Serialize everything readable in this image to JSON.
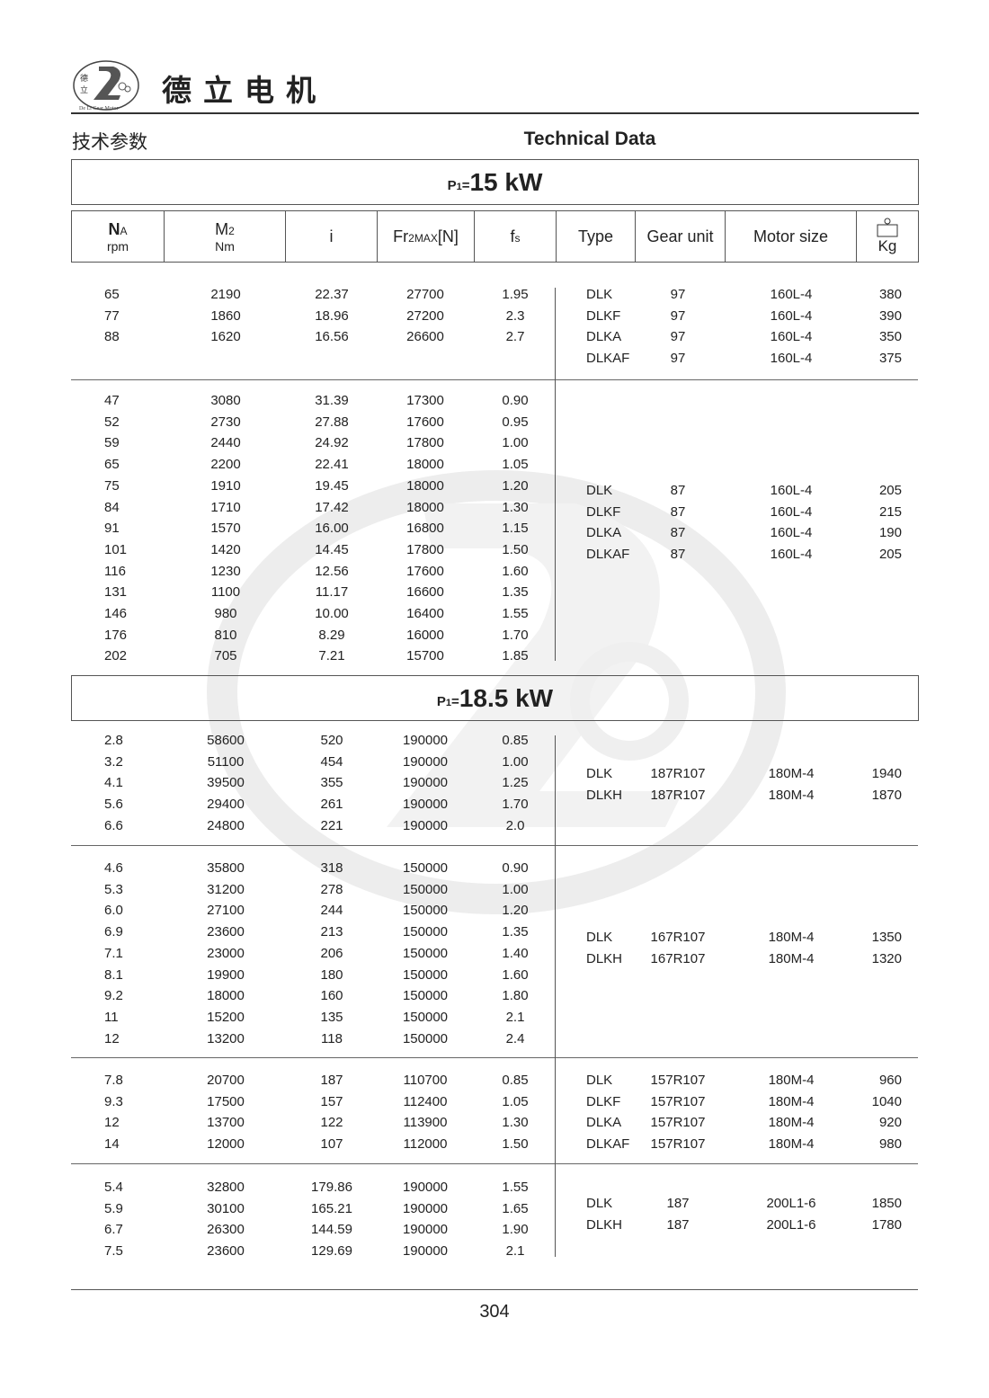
{
  "header": {
    "brand_cn": "德立电机",
    "logo_text": "De Li Gear Motor",
    "logo_chars": "德立",
    "section_cn": "技术参数",
    "section_en": "Technical Data"
  },
  "watermark_text": "De Li Gear Motor",
  "columns": {
    "na": "NA",
    "na_sub": "A",
    "na_main": "N",
    "na_unit": "rpm",
    "m2_main": "M",
    "m2_sub": "2",
    "m2_unit": "Nm",
    "i": "i",
    "fr_main": "Fr",
    "fr_sub": "2MAX",
    "fr_unit": "[N]",
    "fs_main": "f",
    "fs_sub": "s",
    "type": "Type",
    "gear_unit": "Gear unit",
    "motor_size": "Motor size",
    "weight_unit": "Kg",
    "weight_icon": "weight-icon"
  },
  "sections": [
    {
      "power_label": "P",
      "power_sub": "1",
      "power_eq": "=",
      "power_value": "15 kW",
      "groups": [
        {
          "rows": [
            [
              "65",
              "2190",
              "22.37",
              "27700",
              "1.95"
            ],
            [
              "77",
              "1860",
              "18.96",
              "27200",
              "2.3"
            ],
            [
              "88",
              "1620",
              "16.56",
              "26600",
              "2.7"
            ]
          ],
          "variants": [
            [
              "DLK",
              "97",
              "160L-4",
              "380"
            ],
            [
              "DLKF",
              "97",
              "160L-4",
              "390"
            ],
            [
              "DLKA",
              "97",
              "160L-4",
              "350"
            ],
            [
              "DLKAF",
              "97",
              "160L-4",
              "375"
            ]
          ]
        },
        {
          "rows": [
            [
              "47",
              "3080",
              "31.39",
              "17300",
              "0.90"
            ],
            [
              "52",
              "2730",
              "27.88",
              "17600",
              "0.95"
            ],
            [
              "59",
              "2440",
              "24.92",
              "17800",
              "1.00"
            ],
            [
              "65",
              "2200",
              "22.41",
              "18000",
              "1.05"
            ],
            [
              "75",
              "1910",
              "19.45",
              "18000",
              "1.20"
            ],
            [
              "84",
              "1710",
              "17.42",
              "18000",
              "1.30"
            ],
            [
              "91",
              "1570",
              "16.00",
              "16800",
              "1.15"
            ],
            [
              "101",
              "1420",
              "14.45",
              "17800",
              "1.50"
            ],
            [
              "116",
              "1230",
              "12.56",
              "17600",
              "1.60"
            ],
            [
              "131",
              "1100",
              "11.17",
              "16600",
              "1.35"
            ],
            [
              "146",
              "980",
              "10.00",
              "16400",
              "1.55"
            ],
            [
              "176",
              "810",
              "8.29",
              "16000",
              "1.70"
            ],
            [
              "202",
              "705",
              "7.21",
              "15700",
              "1.85"
            ]
          ],
          "variants": [
            [
              "DLK",
              "87",
              "160L-4",
              "205"
            ],
            [
              "DLKF",
              "87",
              "160L-4",
              "215"
            ],
            [
              "DLKA",
              "87",
              "160L-4",
              "190"
            ],
            [
              "DLKAF",
              "87",
              "160L-4",
              "205"
            ]
          ]
        }
      ]
    },
    {
      "power_label": "P",
      "power_sub": "1",
      "power_eq": "=",
      "power_value": "18.5 kW",
      "groups": [
        {
          "rows": [
            [
              "2.8",
              "58600",
              "520",
              "190000",
              "0.85"
            ],
            [
              "3.2",
              "51100",
              "454",
              "190000",
              "1.00"
            ],
            [
              "4.1",
              "39500",
              "355",
              "190000",
              "1.25"
            ],
            [
              "5.6",
              "29400",
              "261",
              "190000",
              "1.70"
            ],
            [
              "6.6",
              "24800",
              "221",
              "190000",
              "2.0"
            ]
          ],
          "variants": [
            [
              "DLK",
              "187R107",
              "180M-4",
              "1940"
            ],
            [
              "DLKH",
              "187R107",
              "180M-4",
              "1870"
            ]
          ]
        },
        {
          "rows": [
            [
              "4.6",
              "35800",
              "318",
              "150000",
              "0.90"
            ],
            [
              "5.3",
              "31200",
              "278",
              "150000",
              "1.00"
            ],
            [
              "6.0",
              "27100",
              "244",
              "150000",
              "1.20"
            ],
            [
              "6.9",
              "23600",
              "213",
              "150000",
              "1.35"
            ],
            [
              "7.1",
              "23000",
              "206",
              "150000",
              "1.40"
            ],
            [
              "8.1",
              "19900",
              "180",
              "150000",
              "1.60"
            ],
            [
              "9.2",
              "18000",
              "160",
              "150000",
              "1.80"
            ],
            [
              "11",
              "15200",
              "135",
              "150000",
              "2.1"
            ],
            [
              "12",
              "13200",
              "118",
              "150000",
              "2.4"
            ]
          ],
          "variants": [
            [
              "DLK",
              "167R107",
              "180M-4",
              "1350"
            ],
            [
              "DLKH",
              "167R107",
              "180M-4",
              "1320"
            ]
          ]
        },
        {
          "rows": [
            [
              "7.8",
              "20700",
              "187",
              "110700",
              "0.85"
            ],
            [
              "9.3",
              "17500",
              "157",
              "112400",
              "1.05"
            ],
            [
              "12",
              "13700",
              "122",
              "113900",
              "1.30"
            ],
            [
              "14",
              "12000",
              "107",
              "112000",
              "1.50"
            ]
          ],
          "variants": [
            [
              "DLK",
              "157R107",
              "180M-4",
              "960"
            ],
            [
              "DLKF",
              "157R107",
              "180M-4",
              "1040"
            ],
            [
              "DLKA",
              "157R107",
              "180M-4",
              "920"
            ],
            [
              "DLKAF",
              "157R107",
              "180M-4",
              "980"
            ]
          ]
        },
        {
          "rows": [
            [
              "5.4",
              "32800",
              "179.86",
              "190000",
              "1.55"
            ],
            [
              "5.9",
              "30100",
              "165.21",
              "190000",
              "1.65"
            ],
            [
              "6.7",
              "26300",
              "144.59",
              "190000",
              "1.90"
            ],
            [
              "7.5",
              "23600",
              "129.69",
              "190000",
              "2.1"
            ]
          ],
          "variants": [
            [
              "DLK",
              "187",
              "200L1-6",
              "1850"
            ],
            [
              "DLKH",
              "187",
              "200L1-6",
              "1780"
            ]
          ]
        }
      ]
    }
  ],
  "footer": {
    "page_number": "304"
  }
}
